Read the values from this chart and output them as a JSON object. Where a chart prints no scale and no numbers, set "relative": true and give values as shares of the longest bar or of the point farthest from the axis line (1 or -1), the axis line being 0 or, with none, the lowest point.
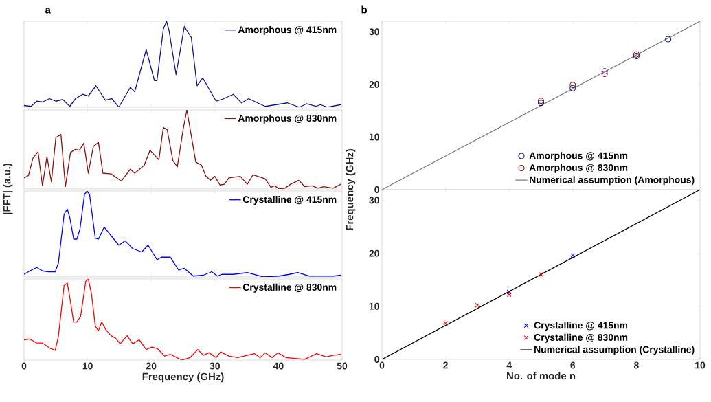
{
  "chart_data": [
    {
      "type": "line",
      "relative": true,
      "title": "a",
      "xlim": [
        0,
        50
      ],
      "xticks": [
        0,
        10,
        20,
        30,
        40,
        50
      ],
      "tick_labels": false,
      "legend": "top right",
      "x": [
        0,
        1.1,
        2.0,
        2.9,
        4.0,
        5.0,
        6.1,
        7.2,
        8.1,
        9.2,
        10.1,
        11.3,
        12.8,
        13.8,
        14.9,
        16.7,
        17.4,
        19.2,
        20.5,
        20.9,
        21.9,
        22.4,
        22.8,
        23.9,
        25.2,
        26.3,
        27.2,
        28.1,
        30.2,
        31.1,
        32.9,
        34.2,
        35.3,
        37.9,
        41.4,
        43.3,
        44.4,
        45.9,
        46.6,
        47.7,
        49.8
      ],
      "series": [
        {
          "name": "Amorphous @ 415nm",
          "color": "#14148c",
          "values": [
            0.02,
            0.01,
            0.07,
            0.06,
            0.1,
            0.07,
            0.09,
            0.01,
            0.1,
            0.15,
            0.13,
            0.25,
            0.08,
            0.1,
            0.0,
            0.23,
            0.18,
            0.67,
            0.31,
            0.31,
            0.91,
            1.0,
            0.89,
            0.38,
            0.94,
            0.81,
            0.25,
            0.34,
            0.07,
            0.09,
            0.15,
            0.05,
            0.1,
            0.01,
            0.05,
            0.0,
            0.04,
            0.01,
            0.03,
            0.0,
            0.03
          ]
        }
      ]
    },
    {
      "type": "line",
      "relative": true,
      "ylabel": "|FFT| (a.u.)",
      "xlim": [
        0,
        50
      ],
      "xticks": [
        0,
        10,
        20,
        30,
        40,
        50
      ],
      "tick_labels": false,
      "legend": "top right",
      "x": [
        0,
        0.7,
        1.4,
        2.2,
        2.9,
        3.6,
        4.3,
        5.0,
        5.8,
        6.5,
        7.3,
        8.0,
        8.7,
        9.4,
        10.1,
        10.9,
        11.7,
        12.4,
        13.7,
        15.3,
        16.7,
        17.4,
        18.9,
        19.8,
        21.2,
        21.9,
        22.5,
        23.4,
        24.1,
        25.0,
        25.6,
        27.0,
        27.9,
        28.6,
        29.3,
        30.0,
        30.8,
        31.5,
        32.2,
        34.0,
        35.1,
        36.0,
        37.9,
        38.8,
        39.4,
        40.1,
        41.0,
        41.9,
        43.2,
        44.1,
        45.3,
        46.2,
        47.1,
        48.6,
        49.8
      ],
      "series": [
        {
          "name": "Amorphous @ 830nm",
          "color": "#8b1010",
          "values": [
            0.14,
            0.17,
            0.39,
            0.47,
            0.04,
            0.41,
            0.09,
            0.65,
            0.69,
            0.03,
            0.46,
            0.5,
            0.49,
            0.58,
            0.2,
            0.54,
            0.59,
            0.2,
            0.19,
            0.1,
            0.25,
            0.2,
            0.3,
            0.49,
            0.37,
            0.78,
            0.75,
            0.36,
            0.28,
            0.75,
            1.0,
            0.34,
            0.3,
            0.16,
            0.11,
            0.16,
            0.05,
            0.06,
            0.14,
            0.16,
            0.06,
            0.18,
            0.13,
            0.02,
            0.04,
            0.0,
            0.01,
            0.06,
            0.11,
            0.03,
            0.04,
            0.01,
            0.03,
            0.01,
            0.06
          ]
        }
      ]
    },
    {
      "type": "line",
      "relative": true,
      "xlim": [
        0,
        50
      ],
      "xticks": [
        0,
        10,
        20,
        30,
        40,
        50
      ],
      "tick_labels": false,
      "legend": "top right",
      "x": [
        0,
        0.9,
        2.0,
        2.9,
        3.8,
        4.9,
        5.4,
        6.3,
        6.8,
        7.2,
        7.8,
        8.3,
        8.8,
        9.5,
        9.9,
        10.3,
        11.2,
        11.7,
        12.6,
        13.8,
        14.9,
        15.9,
        17.1,
        18.5,
        19.5,
        20.9,
        21.6,
        23.0,
        24.3,
        25.2,
        26.6,
        28.2,
        29.5,
        30.4,
        31.1,
        32.9,
        35.1,
        37.6,
        40.1,
        41.7,
        43.0,
        44.8,
        46.9,
        48.7,
        49.8
      ],
      "series": [
        {
          "name": "Crystalline @ 415nm",
          "color": "#0000ff",
          "values": [
            0.03,
            0.07,
            0.11,
            0.07,
            0.06,
            0.06,
            0.16,
            0.73,
            0.79,
            0.69,
            0.44,
            0.44,
            0.56,
            0.96,
            1.0,
            0.96,
            0.45,
            0.44,
            0.58,
            0.47,
            0.37,
            0.42,
            0.33,
            0.29,
            0.37,
            0.2,
            0.23,
            0.23,
            0.08,
            0.1,
            0.01,
            0.02,
            0.06,
            0.01,
            0.03,
            0.03,
            0.05,
            0.0,
            0.01,
            0.03,
            0.05,
            0.01,
            0.01,
            0.01,
            0.02
          ]
        }
      ]
    },
    {
      "type": "line",
      "relative": true,
      "xlabel": "Frequency (GHz)",
      "xlim": [
        0,
        50
      ],
      "xticks": [
        0,
        10,
        20,
        30,
        40,
        50
      ],
      "legend": "top right",
      "x": [
        0,
        0.9,
        2.0,
        2.9,
        4.0,
        4.9,
        5.4,
        6.3,
        6.8,
        7.2,
        7.8,
        8.3,
        8.9,
        9.7,
        10.1,
        10.6,
        11.2,
        11.7,
        12.2,
        12.9,
        13.7,
        14.4,
        15.1,
        16.2,
        17.1,
        18.1,
        19.2,
        20.1,
        21.0,
        22.1,
        23.0,
        24.8,
        26.1,
        27.3,
        28.2,
        29.1,
        30.2,
        30.9,
        32.2,
        33.6,
        36.2,
        37.1,
        37.9,
        39.0,
        39.9,
        41.2,
        42.6,
        44.1,
        46.0,
        47.5,
        48.7,
        49.8
      ],
      "series": [
        {
          "name": "Crystalline @ 830nm",
          "color": "#ff0000",
          "values": [
            0.25,
            0.26,
            0.21,
            0.21,
            0.15,
            0.12,
            0.29,
            0.92,
            0.95,
            0.77,
            0.47,
            0.47,
            0.54,
            0.97,
            1.0,
            0.82,
            0.42,
            0.36,
            0.47,
            0.37,
            0.3,
            0.27,
            0.2,
            0.3,
            0.2,
            0.25,
            0.13,
            0.16,
            0.14,
            0.05,
            0.07,
            0.0,
            0.03,
            0.13,
            0.06,
            0.09,
            0.03,
            0.1,
            0.05,
            0.03,
            0.08,
            0.03,
            0.09,
            0.03,
            0.09,
            0.03,
            0.02,
            0.01,
            0.08,
            0.04,
            0.06,
            0.07
          ]
        }
      ]
    },
    {
      "type": "scatter",
      "title": "b",
      "ylabel": "Frequency (GHz)",
      "xlim": [
        0,
        10
      ],
      "xticks": [
        0,
        2,
        4,
        6,
        8,
        10
      ],
      "ylim": [
        0,
        32
      ],
      "yticks": [
        0,
        10,
        20,
        30
      ],
      "tick_labels": "y",
      "legend": "bottom right",
      "series": [
        {
          "name": "Amorphous @ 415nm",
          "color": "#14148c",
          "marker": "circle",
          "x": [
            5,
            6,
            7,
            8,
            9
          ],
          "values": [
            16.5,
            19.3,
            22.5,
            25.4,
            28.6
          ]
        },
        {
          "name": "Amorphous @ 830nm",
          "color": "#8b1010",
          "marker": "circle",
          "x": [
            5,
            6,
            7,
            8
          ],
          "values": [
            16.9,
            19.9,
            22.0,
            25.7
          ]
        },
        {
          "name": "Numerical assumption (Amorphous)",
          "color": "#808080",
          "type": "line",
          "marker": "none",
          "x": [
            0,
            10
          ],
          "values": [
            0,
            32
          ]
        }
      ]
    },
    {
      "type": "scatter",
      "xlabel": "No. of mode n",
      "xlim": [
        0,
        10
      ],
      "xticks": [
        0,
        2,
        4,
        6,
        8,
        10
      ],
      "ylim": [
        0,
        32
      ],
      "yticks": [
        0,
        10,
        20,
        30
      ],
      "legend": "bottom right",
      "series": [
        {
          "name": "Crystalline @ 415nm",
          "color": "#0000ff",
          "marker": "cross",
          "x": [
            4,
            6
          ],
          "values": [
            12.7,
            19.6
          ]
        },
        {
          "name": "Crystalline @ 830nm",
          "color": "#ff0000",
          "marker": "cross",
          "x": [
            2,
            3,
            4,
            5
          ],
          "values": [
            6.8,
            10.2,
            12.2,
            16.0
          ]
        },
        {
          "name": "Numerical assumption (Crystalline)",
          "color": "#000000",
          "type": "line",
          "marker": "none",
          "x": [
            0,
            10
          ],
          "values": [
            0,
            32
          ]
        }
      ]
    }
  ]
}
